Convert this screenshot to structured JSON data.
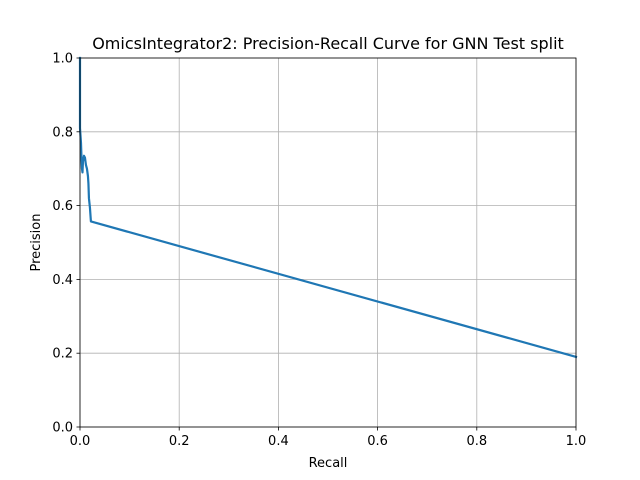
{
  "chart_data": {
    "type": "line",
    "title": "OmicsIntegrator2: Precision-Recall Curve for GNN Test split",
    "xlabel": "Recall",
    "ylabel": "Precision",
    "xlim": [
      0,
      1
    ],
    "ylim": [
      0,
      1
    ],
    "xticks": [
      0.0,
      0.2,
      0.4,
      0.6,
      0.8,
      1.0
    ],
    "xtick_labels": [
      "0.0",
      "0.2",
      "0.4",
      "0.6",
      "0.8",
      "1.0"
    ],
    "yticks": [
      0.0,
      0.2,
      0.4,
      0.6,
      0.8,
      1.0
    ],
    "ytick_labels": [
      "0.0",
      "0.2",
      "0.4",
      "0.6",
      "0.8",
      "1.0"
    ],
    "grid": true,
    "legend": "none",
    "series": [
      {
        "color": "#1f77b4",
        "x": [
          0.0,
          0.0,
          0.002,
          0.003,
          0.004,
          0.005,
          0.006,
          0.008,
          0.01,
          0.012,
          0.014,
          0.016,
          0.017,
          0.018,
          0.02,
          0.022,
          1.0
        ],
        "y": [
          1.0,
          0.81,
          0.77,
          0.73,
          0.7,
          0.69,
          0.72,
          0.735,
          0.73,
          0.71,
          0.7,
          0.68,
          0.66,
          0.62,
          0.595,
          0.557,
          0.19
        ]
      }
    ]
  }
}
